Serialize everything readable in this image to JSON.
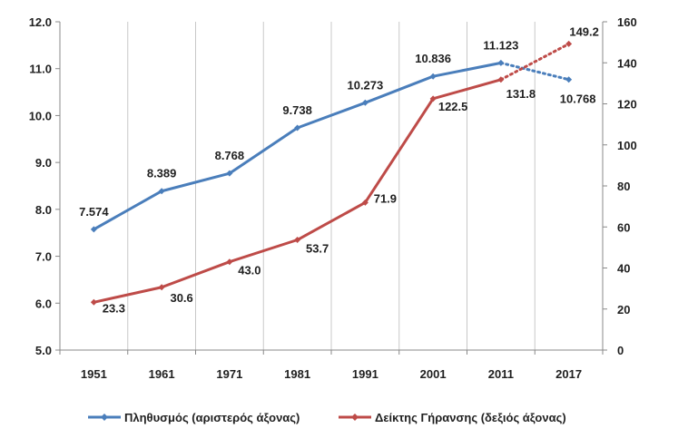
{
  "chart_data": {
    "type": "line",
    "title": "",
    "categories": [
      "1951",
      "1961",
      "1971",
      "1981",
      "1991",
      "2001",
      "2011",
      "2017"
    ],
    "y_left": {
      "min": 5.0,
      "max": 12.0,
      "step": 1.0,
      "ticks": [
        "5.0",
        "6.0",
        "7.0",
        "8.0",
        "9.0",
        "10.0",
        "11.0",
        "12.0"
      ]
    },
    "y_right": {
      "min": 0,
      "max": 160,
      "step": 20,
      "ticks": [
        "0",
        "20",
        "40",
        "60",
        "80",
        "100",
        "120",
        "140",
        "160"
      ]
    },
    "grid": "vertical",
    "legend_position": "bottom",
    "series": [
      {
        "name": "Πληθυσμός (αριστερός άξονας)",
        "axis": "left",
        "color": "#4a7ebb",
        "values": [
          7.574,
          8.389,
          8.768,
          9.738,
          10.273,
          10.836,
          11.123,
          10.768
        ],
        "labels": [
          "7.574",
          "8.389",
          "8.768",
          "9.738",
          "10.273",
          "10.836",
          "11.123",
          "10.768"
        ],
        "dotted_from_index": 6
      },
      {
        "name": "Δείκτης Γήρανσης (δεξιός άξονας)",
        "axis": "right",
        "color": "#be4b48",
        "values": [
          23.3,
          30.6,
          43.0,
          53.7,
          71.9,
          122.5,
          131.8,
          149.2
        ],
        "labels": [
          "23.3",
          "30.6",
          "43.0",
          "53.7",
          "71.9",
          "122.5",
          "131.8",
          "149.2"
        ],
        "dotted_from_index": 6
      }
    ]
  }
}
